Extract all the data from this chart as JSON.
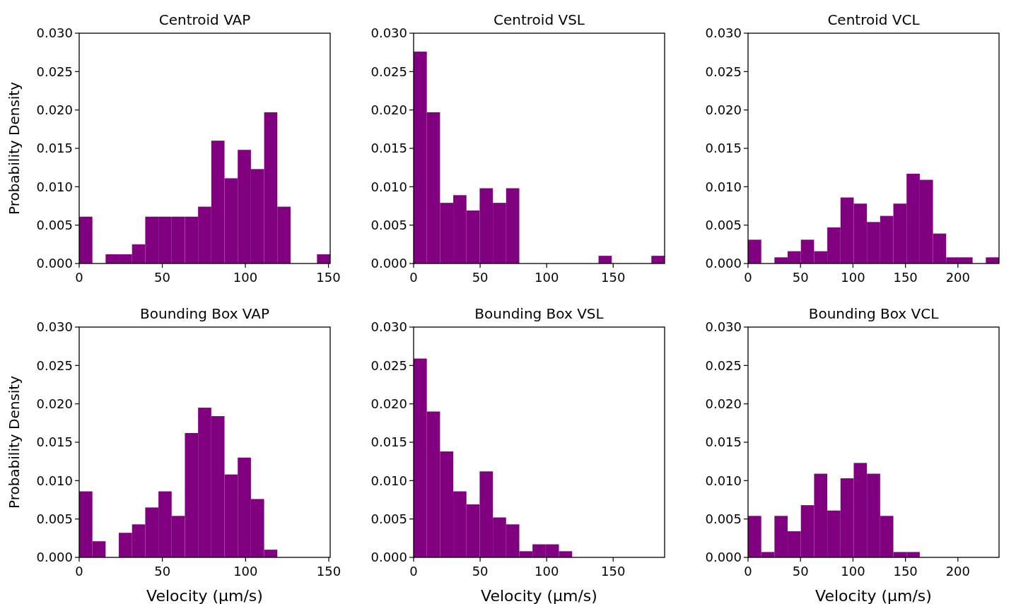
{
  "chart_data": [
    {
      "type": "histogram",
      "title": "Centroid VAP",
      "ylabel": "Probability Density",
      "color": "#800080",
      "grid": false,
      "tick_labels": "xy",
      "bins": [
        0,
        7.95,
        15.9,
        23.85,
        31.8,
        39.75,
        47.7,
        55.65,
        63.6,
        71.55,
        79.5,
        87.45,
        95.4,
        103.35,
        111.3,
        119.25,
        127.2,
        135.15,
        143.1,
        151.05
      ],
      "values": [
        0.0061,
        0,
        0.0012,
        0.0012,
        0.0025,
        0.0061,
        0.0061,
        0.0061,
        0.0061,
        0.0074,
        0.016,
        0.0111,
        0.0148,
        0.0123,
        0.0197,
        0.0074,
        0,
        0,
        0.0012
      ],
      "xlim": [
        0,
        151.05
      ],
      "xticks": [
        0,
        50,
        100,
        150
      ],
      "ylim": [
        0,
        0.03
      ],
      "yticks": [
        {
          "value": 0,
          "label": "0.000"
        },
        {
          "value": 0.005,
          "label": "0.005"
        },
        {
          "value": 0.01,
          "label": "0.010"
        },
        {
          "value": 0.015,
          "label": "0.015"
        },
        {
          "value": 0.02,
          "label": "0.020"
        },
        {
          "value": 0.025,
          "label": "0.025"
        },
        {
          "value": 0.03,
          "label": "0.030"
        }
      ]
    },
    {
      "type": "histogram",
      "title": "Centroid VSL",
      "color": "#800080",
      "grid": false,
      "bins": [
        0,
        9.93,
        19.86,
        29.79,
        39.72,
        49.65,
        59.58,
        69.51,
        79.44,
        89.37,
        99.3,
        109.23,
        119.16,
        129.09,
        139.02,
        148.95,
        158.88,
        168.81,
        178.74,
        188.67
      ],
      "values": [
        0.0276,
        0.0197,
        0.0079,
        0.0089,
        0.0069,
        0.0098,
        0.0079,
        0.0098,
        0,
        0,
        0,
        0,
        0,
        0,
        0.001,
        0,
        0,
        0,
        0.001
      ],
      "xlim": [
        0,
        188.67
      ],
      "xticks": [
        0,
        50,
        100,
        150
      ],
      "ylim": [
        0,
        0.03
      ],
      "yticks": [
        {
          "value": 0,
          "label": "0.000"
        },
        {
          "value": 0.005,
          "label": "0.005"
        },
        {
          "value": 0.01,
          "label": "0.010"
        },
        {
          "value": 0.015,
          "label": "0.015"
        },
        {
          "value": 0.02,
          "label": "0.020"
        },
        {
          "value": 0.025,
          "label": "0.025"
        },
        {
          "value": 0.03,
          "label": "0.030"
        }
      ]
    },
    {
      "type": "histogram",
      "title": "Centroid VCL",
      "color": "#800080",
      "grid": false,
      "bins": [
        0,
        12.59,
        25.18,
        37.77,
        50.36,
        62.95,
        75.54,
        88.13,
        100.72,
        113.31,
        125.9,
        138.49,
        151.08,
        163.67,
        176.26,
        188.85,
        201.44,
        214.03,
        226.62,
        239.21
      ],
      "values": [
        0.0031,
        0,
        0.0008,
        0.0016,
        0.0031,
        0.0016,
        0.0047,
        0.0086,
        0.0078,
        0.0054,
        0.0062,
        0.0078,
        0.0117,
        0.0109,
        0.0039,
        0.0008,
        0.0008,
        0,
        0.0008
      ],
      "xlim": [
        0,
        239.21
      ],
      "xticks": [
        0,
        50,
        100,
        150,
        200
      ],
      "ylim": [
        0,
        0.03
      ],
      "yticks": [
        {
          "value": 0,
          "label": "0.000"
        },
        {
          "value": 0.005,
          "label": "0.005"
        },
        {
          "value": 0.01,
          "label": "0.010"
        },
        {
          "value": 0.015,
          "label": "0.015"
        },
        {
          "value": 0.02,
          "label": "0.020"
        },
        {
          "value": 0.025,
          "label": "0.025"
        },
        {
          "value": 0.03,
          "label": "0.030"
        }
      ]
    },
    {
      "type": "histogram",
      "title": "Bounding Box VAP",
      "xlabel": "Velocity (µm/s)",
      "ylabel": "Probability Density",
      "color": "#800080",
      "grid": false,
      "bins": [
        0,
        7.94,
        15.88,
        23.82,
        31.76,
        39.7,
        47.64,
        55.58,
        63.52,
        71.46,
        79.4,
        87.34,
        95.28,
        103.22,
        111.16,
        119.1,
        127.04,
        134.98,
        142.92,
        150.86
      ],
      "values": [
        0.0086,
        0.0021,
        0,
        0.0032,
        0.0043,
        0.0065,
        0.0086,
        0.0054,
        0.0162,
        0.0195,
        0.0184,
        0.0108,
        0.013,
        0.0076,
        0.001,
        0,
        0,
        0,
        0
      ],
      "xlim": [
        0,
        150.86
      ],
      "xticks": [
        0,
        50,
        100,
        150
      ],
      "ylim": [
        0,
        0.03
      ],
      "yticks": [
        {
          "value": 0,
          "label": "0.000"
        },
        {
          "value": 0.005,
          "label": "0.005"
        },
        {
          "value": 0.01,
          "label": "0.010"
        },
        {
          "value": 0.015,
          "label": "0.015"
        },
        {
          "value": 0.02,
          "label": "0.020"
        },
        {
          "value": 0.025,
          "label": "0.025"
        },
        {
          "value": 0.03,
          "label": "0.030"
        }
      ]
    },
    {
      "type": "histogram",
      "title": "Bounding Box VSL",
      "xlabel": "Velocity (µm/s)",
      "color": "#800080",
      "grid": false,
      "bins": [
        0,
        9.93,
        19.86,
        29.79,
        39.72,
        49.65,
        59.58,
        69.51,
        79.44,
        89.37,
        99.3,
        109.23,
        119.16,
        129.09,
        139.02,
        148.95,
        158.88,
        168.81,
        178.74,
        188.67
      ],
      "values": [
        0.0259,
        0.019,
        0.0138,
        0.0086,
        0.0069,
        0.0112,
        0.0052,
        0.0043,
        0.0008,
        0.0017,
        0.0017,
        0.0008,
        0,
        0,
        0,
        0,
        0,
        0,
        0
      ],
      "xlim": [
        0,
        188.67
      ],
      "xticks": [
        0,
        50,
        100,
        150
      ],
      "ylim": [
        0,
        0.03
      ],
      "yticks": [
        {
          "value": 0,
          "label": "0.000"
        },
        {
          "value": 0.005,
          "label": "0.005"
        },
        {
          "value": 0.01,
          "label": "0.010"
        },
        {
          "value": 0.015,
          "label": "0.015"
        },
        {
          "value": 0.02,
          "label": "0.020"
        },
        {
          "value": 0.025,
          "label": "0.025"
        },
        {
          "value": 0.03,
          "label": "0.030"
        }
      ]
    },
    {
      "type": "histogram",
      "title": "Bounding Box VCL",
      "xlabel": "Velocity (µm/s)",
      "color": "#800080",
      "grid": false,
      "bins": [
        0,
        12.59,
        25.18,
        37.77,
        50.36,
        62.95,
        75.54,
        88.13,
        100.72,
        113.31,
        125.9,
        138.49,
        151.08,
        163.67,
        176.26,
        188.85,
        201.44,
        214.03,
        226.62,
        239.21
      ],
      "values": [
        0.0054,
        0.0007,
        0.0054,
        0.0034,
        0.0068,
        0.0109,
        0.0061,
        0.0103,
        0.0123,
        0.0109,
        0.0054,
        0.0007,
        0.0007,
        0,
        0,
        0,
        0,
        0,
        0
      ],
      "xlim": [
        0,
        239.21
      ],
      "xticks": [
        0,
        50,
        100,
        150,
        200
      ],
      "ylim": [
        0,
        0.03
      ],
      "yticks": [
        {
          "value": 0,
          "label": "0.000"
        },
        {
          "value": 0.005,
          "label": "0.005"
        },
        {
          "value": 0.01,
          "label": "0.010"
        },
        {
          "value": 0.015,
          "label": "0.015"
        },
        {
          "value": 0.02,
          "label": "0.020"
        },
        {
          "value": 0.025,
          "label": "0.025"
        },
        {
          "value": 0.03,
          "label": "0.030"
        }
      ]
    }
  ]
}
